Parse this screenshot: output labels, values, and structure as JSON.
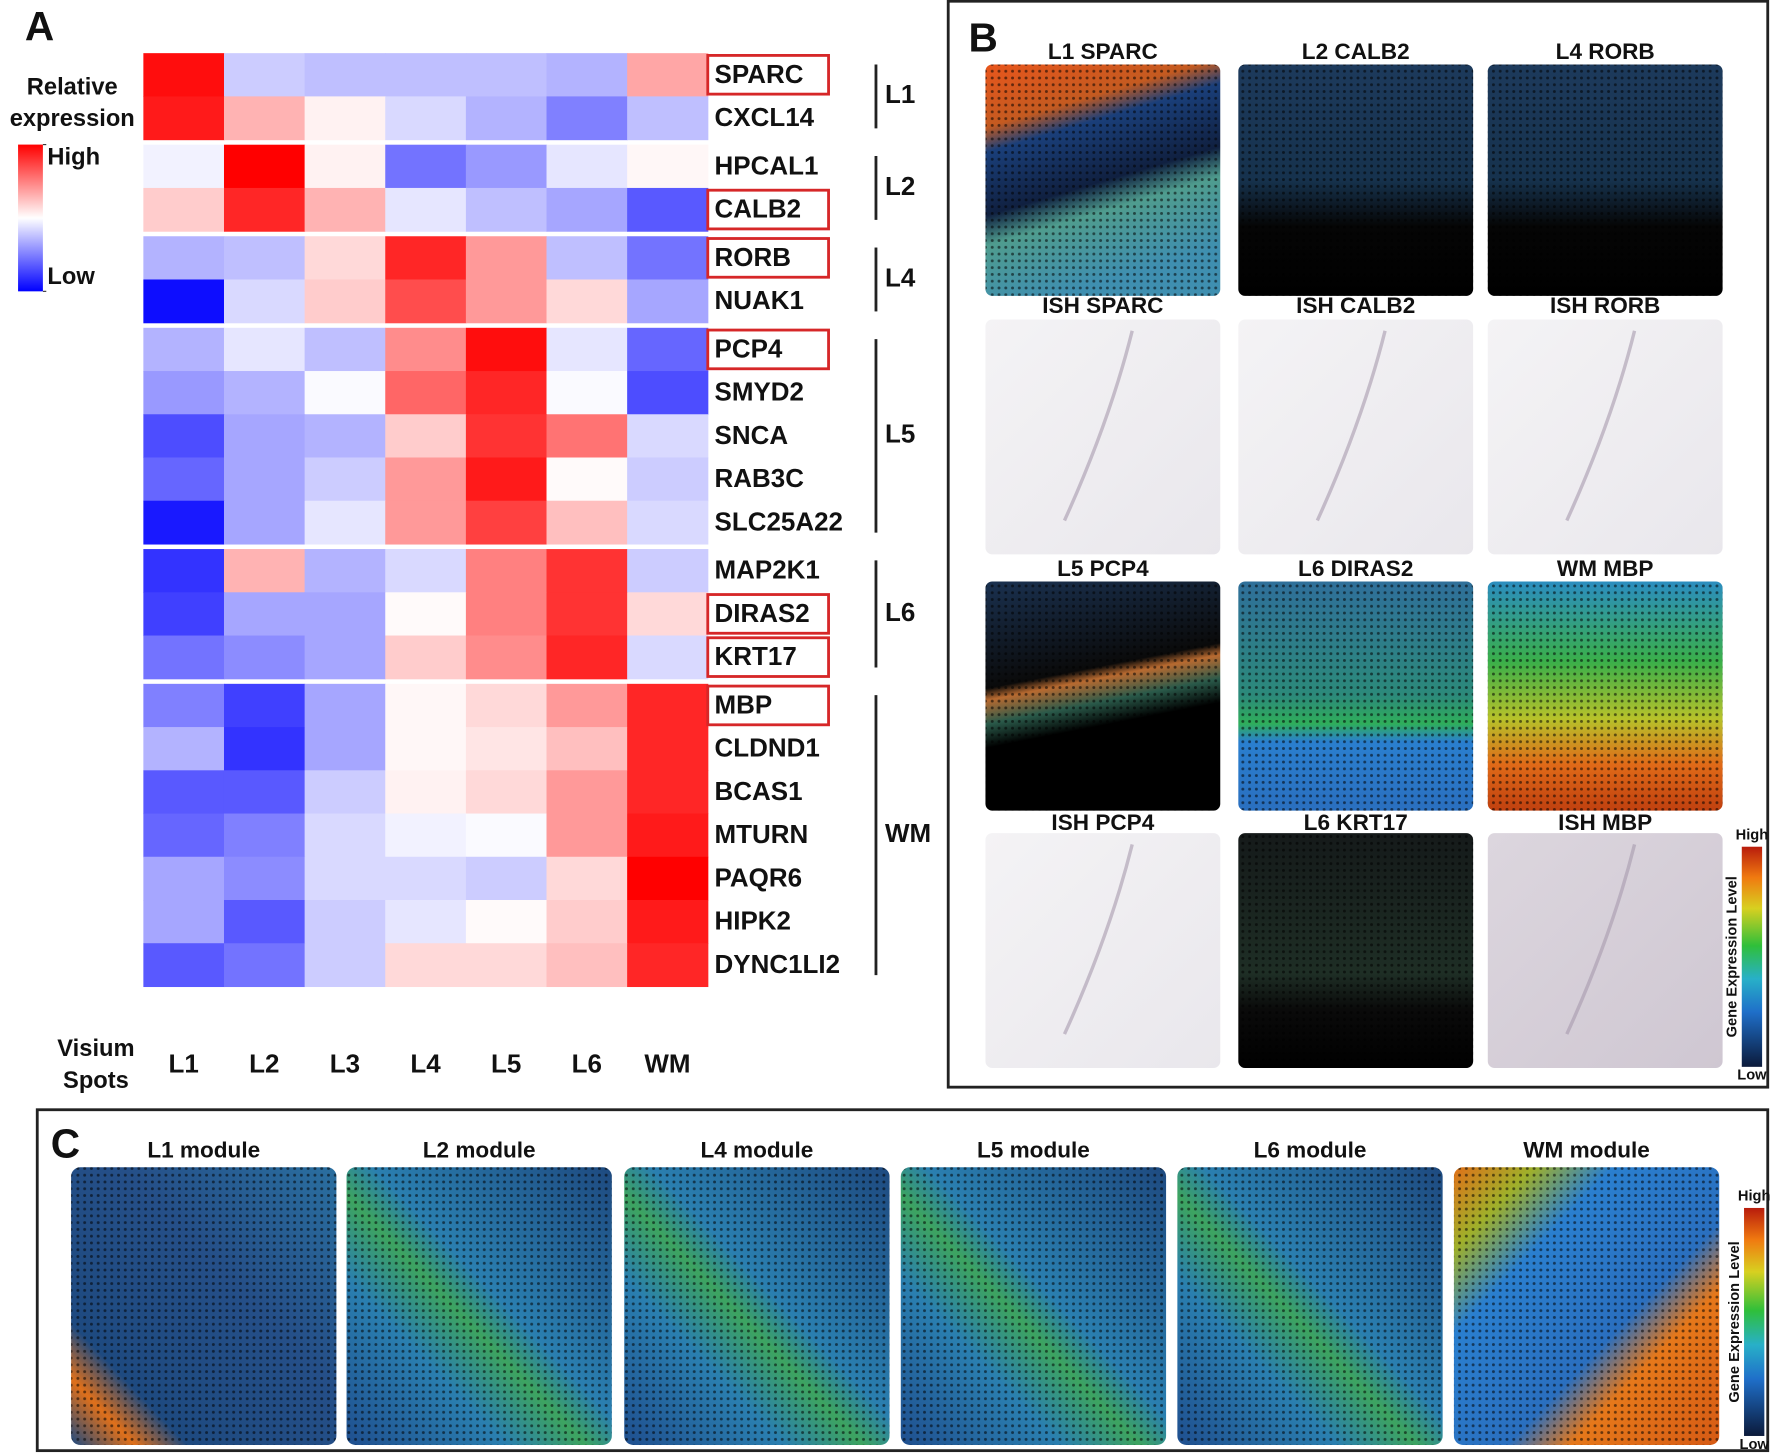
{
  "panel_labels": [
    "A",
    "B",
    "C"
  ],
  "chart_data": {
    "type": "heatmap",
    "colorbar_title": [
      "Relative",
      "expression"
    ],
    "x_label": [
      "Visium",
      "Spots"
    ],
    "columns": [
      "L1",
      "L2",
      "L3",
      "L4",
      "L5",
      "L6",
      "WM"
    ],
    "rows": [
      "SPARC",
      "CXCL14",
      "HPCAL1",
      "CALB2",
      "RORB",
      "NUAK1",
      "PCP4",
      "SMYD2",
      "SNCA",
      "RAB3C",
      "SLC25A22",
      "MAP2K1",
      "DIRAS2",
      "KRT17",
      "MBP",
      "CLDND1",
      "BCAS1",
      "MTURN",
      "PAQR6",
      "HIPK2",
      "DYNC1LI2"
    ],
    "row_groups": [
      {
        "name": "L1",
        "size": 2
      },
      {
        "name": "L2",
        "size": 2
      },
      {
        "name": "L4",
        "size": 2
      },
      {
        "name": "L5",
        "size": 5
      },
      {
        "name": "L6",
        "size": 3
      },
      {
        "name": "WM",
        "size": 7
      }
    ],
    "highlighted_rows": [
      0,
      3,
      4,
      6,
      12,
      13,
      14
    ],
    "highlight_color": "#d62728",
    "low_color": "#0000ff",
    "mid_color": "#ffffff",
    "high_color": "#ff0000",
    "clim": [
      -1,
      1
    ],
    "colorbar_ticks": [
      {
        "value": 1,
        "label": "High"
      },
      {
        "value": -1,
        "label": "Low"
      }
    ],
    "values": [
      [
        0.95,
        -0.2,
        -0.25,
        -0.25,
        -0.25,
        -0.3,
        0.35
      ],
      [
        0.9,
        0.3,
        0.05,
        -0.15,
        -0.3,
        -0.5,
        -0.25
      ],
      [
        -0.05,
        1.0,
        0.05,
        -0.55,
        -0.4,
        -0.1,
        0.03
      ],
      [
        0.2,
        0.85,
        0.3,
        -0.1,
        -0.25,
        -0.35,
        -0.65
      ],
      [
        -0.3,
        -0.25,
        0.15,
        0.85,
        0.4,
        -0.25,
        -0.55
      ],
      [
        -0.95,
        -0.15,
        0.2,
        0.7,
        0.4,
        0.15,
        -0.35
      ],
      [
        -0.3,
        -0.1,
        -0.25,
        0.45,
        0.95,
        -0.1,
        -0.6
      ],
      [
        -0.4,
        -0.3,
        -0.02,
        0.6,
        0.85,
        -0.02,
        -0.7
      ],
      [
        -0.7,
        -0.35,
        -0.3,
        0.2,
        0.8,
        0.55,
        -0.15
      ],
      [
        -0.6,
        -0.35,
        -0.2,
        0.4,
        0.9,
        0.02,
        -0.2
      ],
      [
        -0.9,
        -0.35,
        -0.1,
        0.4,
        0.75,
        0.25,
        -0.15
      ],
      [
        -0.8,
        0.3,
        -0.3,
        -0.15,
        0.5,
        0.8,
        -0.2
      ],
      [
        -0.75,
        -0.35,
        -0.35,
        0.02,
        0.5,
        0.8,
        0.15
      ],
      [
        -0.55,
        -0.45,
        -0.35,
        0.2,
        0.45,
        0.85,
        -0.15
      ],
      [
        -0.5,
        -0.75,
        -0.35,
        0.03,
        0.15,
        0.4,
        0.85
      ],
      [
        -0.3,
        -0.8,
        -0.35,
        0.03,
        0.1,
        0.25,
        0.85
      ],
      [
        -0.65,
        -0.65,
        -0.2,
        0.05,
        0.15,
        0.4,
        0.85
      ],
      [
        -0.6,
        -0.5,
        -0.15,
        -0.05,
        -0.02,
        0.4,
        0.9
      ],
      [
        -0.35,
        -0.45,
        -0.15,
        -0.15,
        -0.2,
        0.15,
        1.0
      ],
      [
        -0.35,
        -0.65,
        -0.2,
        -0.1,
        0.02,
        0.2,
        0.9
      ],
      [
        -0.65,
        -0.55,
        -0.2,
        0.15,
        0.15,
        0.25,
        0.85
      ]
    ]
  },
  "panel_b": {
    "titles": [
      "L1 SPARC",
      "L2 CALB2",
      "L4 RORB",
      "ISH SPARC",
      "ISH CALB2",
      "ISH RORB",
      "L5 PCP4",
      "L6 DIRAS2",
      "WM MBP",
      "ISH PCP4",
      "L6 KRT17",
      "ISH MBP"
    ],
    "colorbar_title": "Gene Expression Level",
    "colorbar_high": "High",
    "colorbar_low": "Low"
  },
  "panel_c": {
    "titles": [
      "L1 module",
      "L2 module",
      "L4 module",
      "L5 module",
      "L6 module",
      "WM module"
    ],
    "colorbar_title": "Gene Expression Level",
    "colorbar_high": "High",
    "colorbar_low": "Low"
  }
}
